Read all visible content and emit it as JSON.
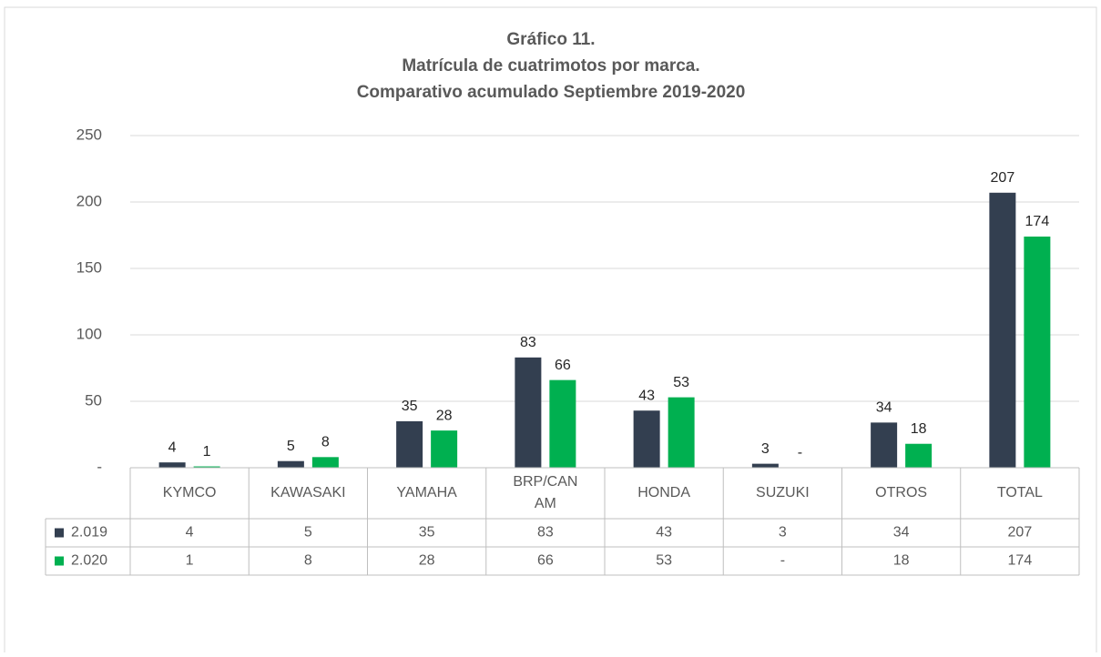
{
  "chart_data": {
    "type": "bar",
    "title": "Gráfico 11.",
    "subtitle": [
      "Matrícula de cuatrimotos por marca.",
      "Comparativo acumulado  Septiembre 2019-2020"
    ],
    "categories": [
      "KYMCO",
      "KAWASAKI",
      "YAMAHA",
      "BRP/CAN AM",
      "HONDA",
      "SUZUKI",
      "OTROS",
      "TOTAL"
    ],
    "series": [
      {
        "name": "2.019",
        "color": "#333f50",
        "values": [
          4,
          5,
          35,
          83,
          43,
          3,
          34,
          207
        ]
      },
      {
        "name": "2.020",
        "color": "#00b050",
        "values": [
          1,
          8,
          28,
          66,
          53,
          0,
          18,
          174
        ],
        "value_labels": [
          "1",
          "8",
          "28",
          "66",
          "53",
          "-",
          "18",
          "174"
        ]
      }
    ],
    "ylim": [
      0,
      250
    ],
    "yticks": [
      {
        "value": 0,
        "label": "-"
      },
      50,
      100,
      150,
      200,
      250
    ],
    "grid": true,
    "data_table": true
  }
}
